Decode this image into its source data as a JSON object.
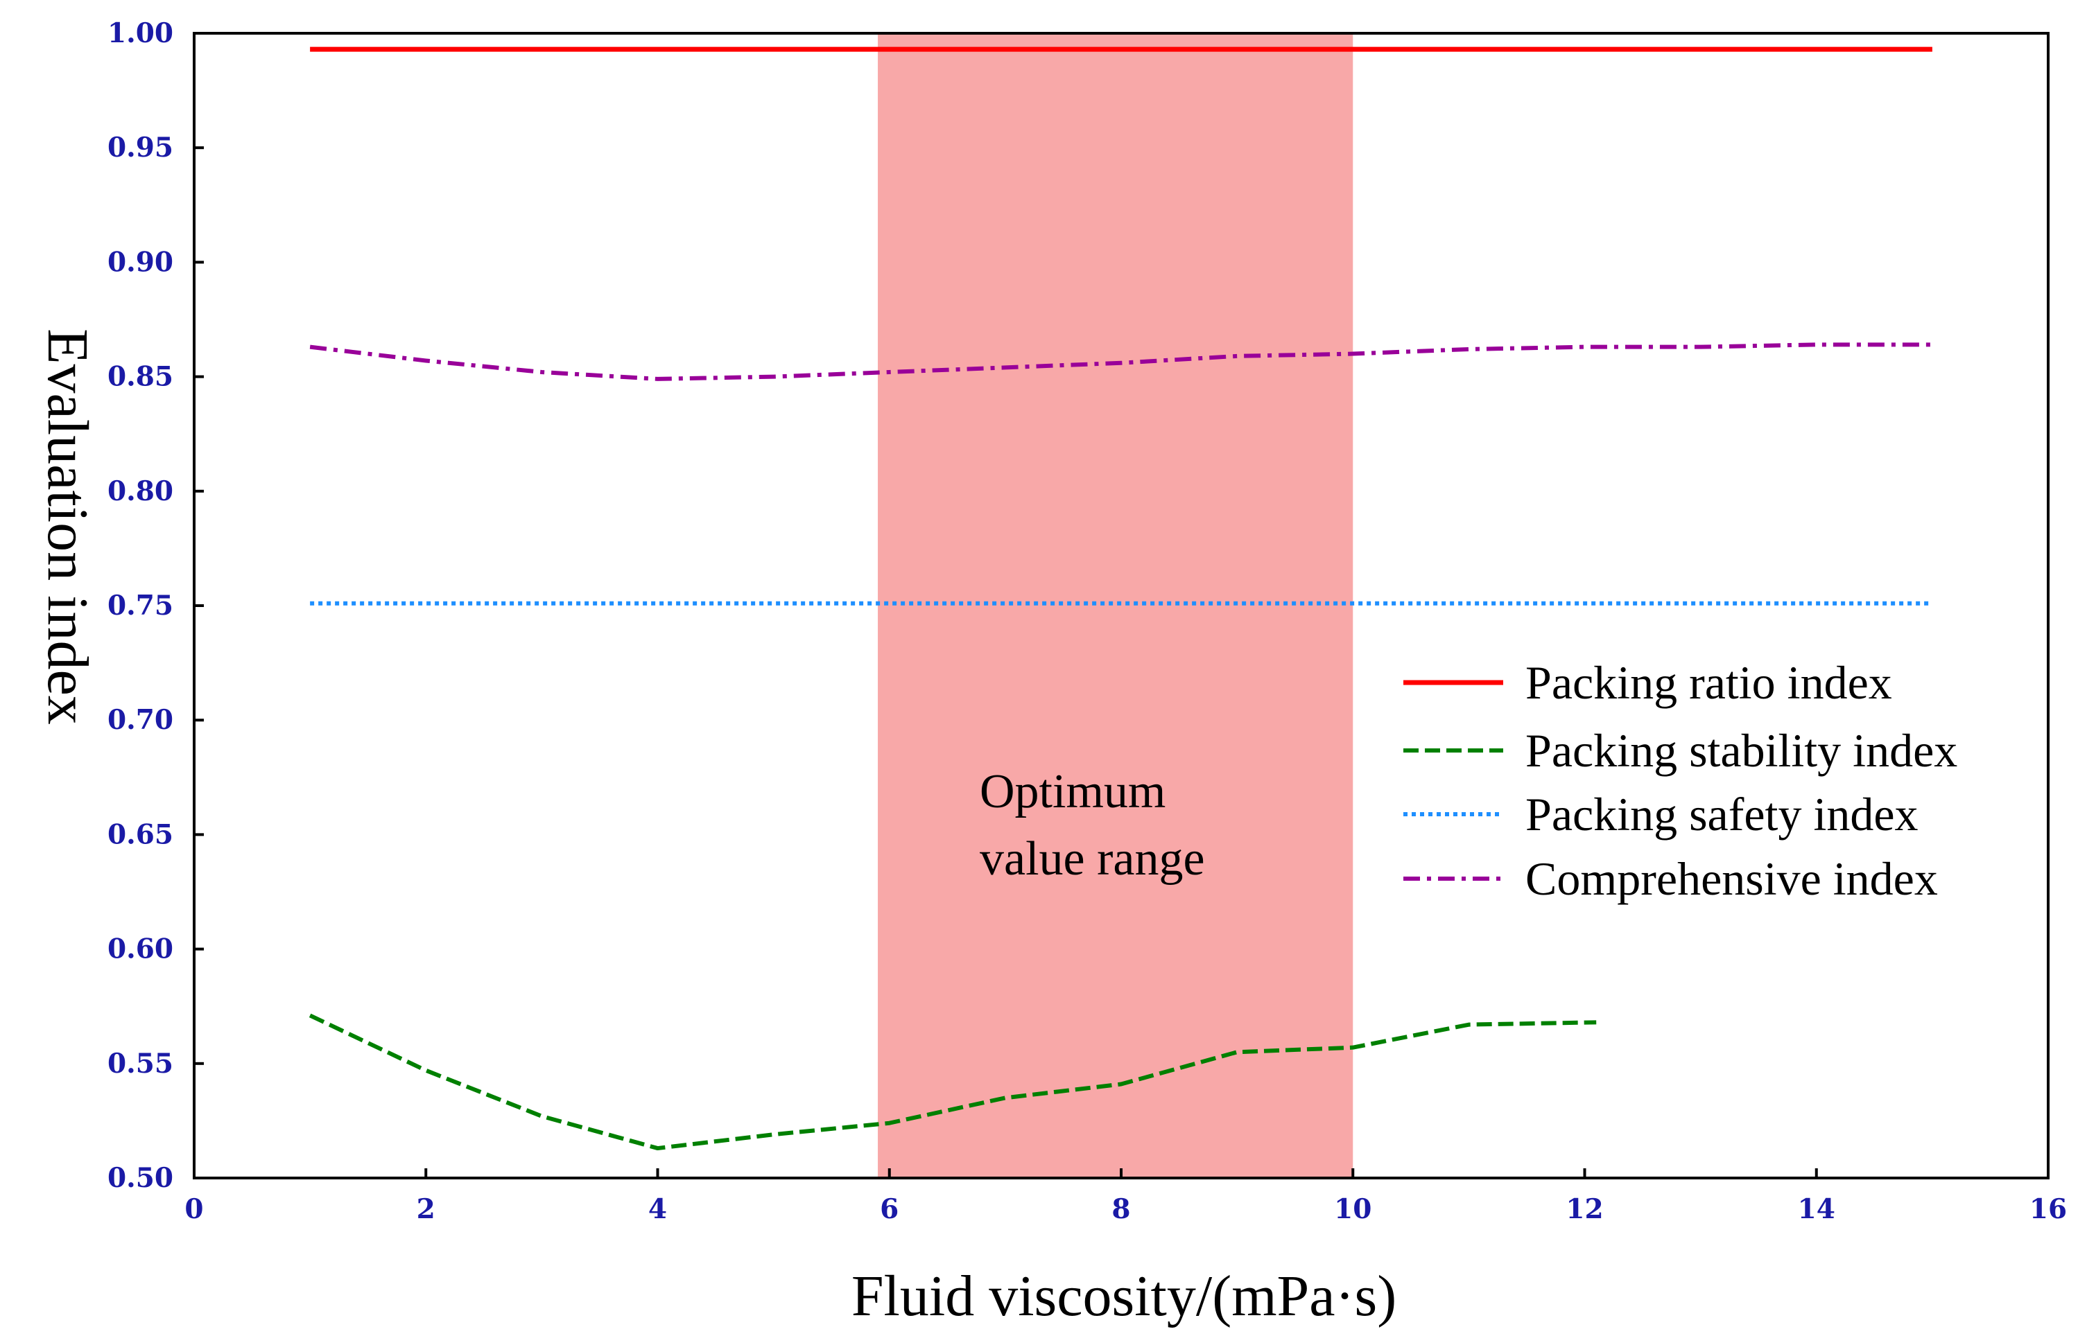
{
  "chart_data": {
    "type": "line",
    "xlabel": "Fluid viscosity/(mPa·s)",
    "ylabel": "Evaluation index",
    "xlim": [
      0,
      16
    ],
    "ylim": [
      0.5,
      1.0
    ],
    "x_ticks": [
      "0",
      "2",
      "4",
      "6",
      "8",
      "10",
      "12",
      "14",
      "16"
    ],
    "y_ticks": [
      "0.50",
      "0.55",
      "0.60",
      "0.65",
      "0.70",
      "0.75",
      "0.80",
      "0.85",
      "0.90",
      "0.95",
      "1.00"
    ],
    "highlight_region": {
      "x_range": [
        5.9,
        10
      ],
      "color": "#f8a8a8",
      "label_line1": "Optimum",
      "label_line2": "value range"
    },
    "series": [
      {
        "name": "Packing ratio index",
        "color": "#ff0000",
        "style": "solid",
        "x": [
          1,
          15
        ],
        "y": [
          0.993,
          0.993
        ]
      },
      {
        "name": "Packing stability index",
        "color": "#008000",
        "style": "dashed",
        "x": [
          1,
          2,
          3,
          4,
          5,
          6,
          7,
          8,
          9,
          10,
          11,
          12.1
        ],
        "y": [
          0.571,
          0.547,
          0.527,
          0.513,
          0.519,
          0.524,
          0.535,
          0.541,
          0.555,
          0.557,
          0.567,
          0.568
        ]
      },
      {
        "name": "Packing safety index",
        "color": "#1e8fff",
        "style": "dotted",
        "x": [
          1,
          15
        ],
        "y": [
          0.751,
          0.751
        ]
      },
      {
        "name": "Comprehensive index",
        "color": "#990099",
        "style": "dashdot",
        "x": [
          1,
          2,
          3,
          4,
          5,
          6,
          7,
          8,
          9,
          10,
          11,
          12,
          13,
          14,
          15
        ],
        "y": [
          0.863,
          0.857,
          0.852,
          0.849,
          0.85,
          0.852,
          0.854,
          0.856,
          0.859,
          0.86,
          0.862,
          0.863,
          0.863,
          0.864,
          0.864
        ]
      }
    ]
  }
}
